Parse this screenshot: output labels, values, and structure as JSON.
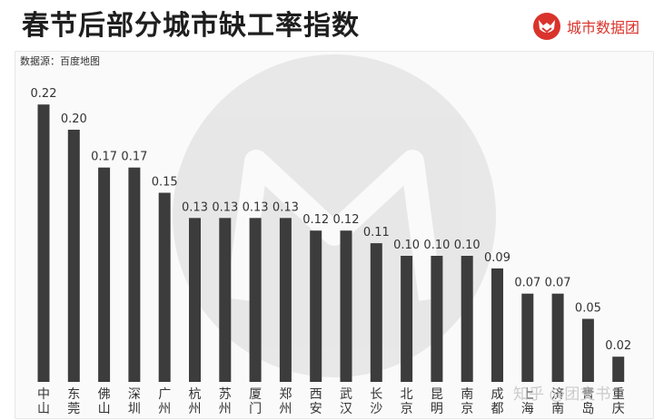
{
  "header": {
    "title": "春节后部分城市缺工率指数",
    "brand_name": "城市数据团"
  },
  "source_note": "数据源：百度地图",
  "watermark_text": "知乎 @团支书",
  "colors": {
    "bar": "#3c3c3c",
    "brand": "#d9332b",
    "panel_bg": "#fafafa"
  },
  "chart_data": {
    "type": "bar",
    "title": "春节后部分城市缺工率指数",
    "xlabel": "",
    "ylabel": "",
    "ylim": [
      0,
      0.24
    ],
    "grid": false,
    "categories": [
      "中山",
      "东莞",
      "佛山",
      "深圳",
      "广州",
      "杭州",
      "苏州",
      "厦门",
      "郑州",
      "西安",
      "武汉",
      "长沙",
      "北京",
      "昆明",
      "南京",
      "成都",
      "上海",
      "济南",
      "青岛",
      "重庆"
    ],
    "values": [
      0.22,
      0.2,
      0.17,
      0.17,
      0.15,
      0.13,
      0.13,
      0.13,
      0.13,
      0.12,
      0.12,
      0.11,
      0.1,
      0.1,
      0.1,
      0.09,
      0.07,
      0.07,
      0.05,
      0.02
    ],
    "value_labels": [
      "0.22",
      "0.20",
      "0.17",
      "0.17",
      "0.15",
      "0.13",
      "0.13",
      "0.13",
      "0.13",
      "0.12",
      "0.12",
      "0.11",
      "0.10",
      "0.10",
      "0.10",
      "0.09",
      "0.07",
      "0.07",
      "0.05",
      "0.02"
    ]
  }
}
